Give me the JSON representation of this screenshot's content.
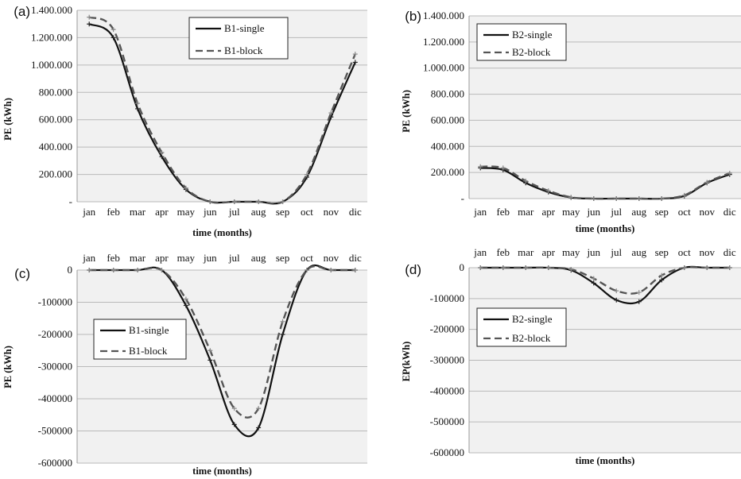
{
  "chart_data": [
    {
      "panel": "(a)",
      "type": "line",
      "categories": [
        "jan",
        "feb",
        "mar",
        "apr",
        "may",
        "jun",
        "jul",
        "aug",
        "sep",
        "oct",
        "nov",
        "dic"
      ],
      "series": [
        {
          "name": "B1-single",
          "values": [
            1300000,
            1200000,
            680000,
            330000,
            90000,
            0,
            0,
            0,
            0,
            180000,
            620000,
            1020000
          ],
          "color": "#111111",
          "style": "solid"
        },
        {
          "name": "B1-block",
          "values": [
            1350000,
            1260000,
            720000,
            360000,
            100000,
            0,
            0,
            0,
            0,
            200000,
            650000,
            1080000
          ],
          "color": "#555555",
          "style": "dashed"
        }
      ],
      "ylim": [
        0,
        1400000
      ],
      "yticks": [
        "-",
        "200.000",
        "400.000",
        "600.000",
        "800.000",
        "1.000.000",
        "1.200.000",
        "1.400.000"
      ],
      "xlabel": "time (months)",
      "ylabel": "PE (kWh)",
      "legend": "top-center",
      "xaxis_position": "bottom",
      "grid": true
    },
    {
      "panel": "(b)",
      "type": "line",
      "categories": [
        "jan",
        "feb",
        "mar",
        "apr",
        "may",
        "jun",
        "jul",
        "aug",
        "sep",
        "oct",
        "nov",
        "dic"
      ],
      "series": [
        {
          "name": "B2-single",
          "values": [
            235000,
            220000,
            120000,
            50000,
            8000,
            0,
            0,
            0,
            0,
            20000,
            120000,
            185000
          ],
          "color": "#111111",
          "style": "solid"
        },
        {
          "name": "B2-block",
          "values": [
            245000,
            235000,
            135000,
            60000,
            10000,
            0,
            0,
            0,
            0,
            25000,
            125000,
            195000
          ],
          "color": "#555555",
          "style": "dashed"
        }
      ],
      "ylim": [
        0,
        1400000
      ],
      "yticks": [
        "-",
        "200.000",
        "400.000",
        "600.000",
        "800.000",
        "1.000.000",
        "1.200.000",
        "1.400.000"
      ],
      "xlabel": "time (months)",
      "ylabel": "PE (kWh)",
      "legend": "top-left",
      "xaxis_position": "bottom",
      "grid": true
    },
    {
      "panel": "(c)",
      "type": "line",
      "categories": [
        "jan",
        "feb",
        "mar",
        "apr",
        "may",
        "jun",
        "jul",
        "aug",
        "sep",
        "oct",
        "nov",
        "dic"
      ],
      "series": [
        {
          "name": "B1-single",
          "values": [
            0,
            0,
            0,
            0,
            -110000,
            -280000,
            -480000,
            -490000,
            -200000,
            0,
            0,
            0
          ],
          "color": "#111111",
          "style": "solid"
        },
        {
          "name": "B1-block",
          "values": [
            0,
            0,
            0,
            0,
            -90000,
            -250000,
            -430000,
            -430000,
            -160000,
            0,
            0,
            0
          ],
          "color": "#555555",
          "style": "dashed"
        }
      ],
      "ylim": [
        -600000,
        0
      ],
      "yticks": [
        "0",
        "-100000",
        "-200000",
        "-300000",
        "-400000",
        "-500000",
        "-600000"
      ],
      "xlabel": "time (months)",
      "ylabel": "PE (kWh)",
      "legend": "left",
      "xaxis_position": "top",
      "grid": true
    },
    {
      "panel": "(d)",
      "type": "line",
      "categories": [
        "jan",
        "feb",
        "mar",
        "apr",
        "may",
        "jun",
        "jul",
        "aug",
        "sep",
        "oct",
        "nov",
        "dic"
      ],
      "series": [
        {
          "name": "B2-single",
          "values": [
            0,
            0,
            0,
            0,
            -8000,
            -50000,
            -105000,
            -110000,
            -40000,
            0,
            0,
            0
          ],
          "color": "#111111",
          "style": "solid"
        },
        {
          "name": "B2-block",
          "values": [
            0,
            0,
            0,
            0,
            -5000,
            -35000,
            -75000,
            -80000,
            -25000,
            0,
            0,
            0
          ],
          "color": "#555555",
          "style": "dashed"
        }
      ],
      "ylim": [
        -600000,
        0
      ],
      "yticks": [
        "0",
        "-100000",
        "-200000",
        "-300000",
        "-400000",
        "-500000",
        "-600000"
      ],
      "xlabel": "time (months)",
      "ylabel": "EP(kWh)",
      "legend": "left",
      "xaxis_position": "top",
      "grid": true
    }
  ]
}
